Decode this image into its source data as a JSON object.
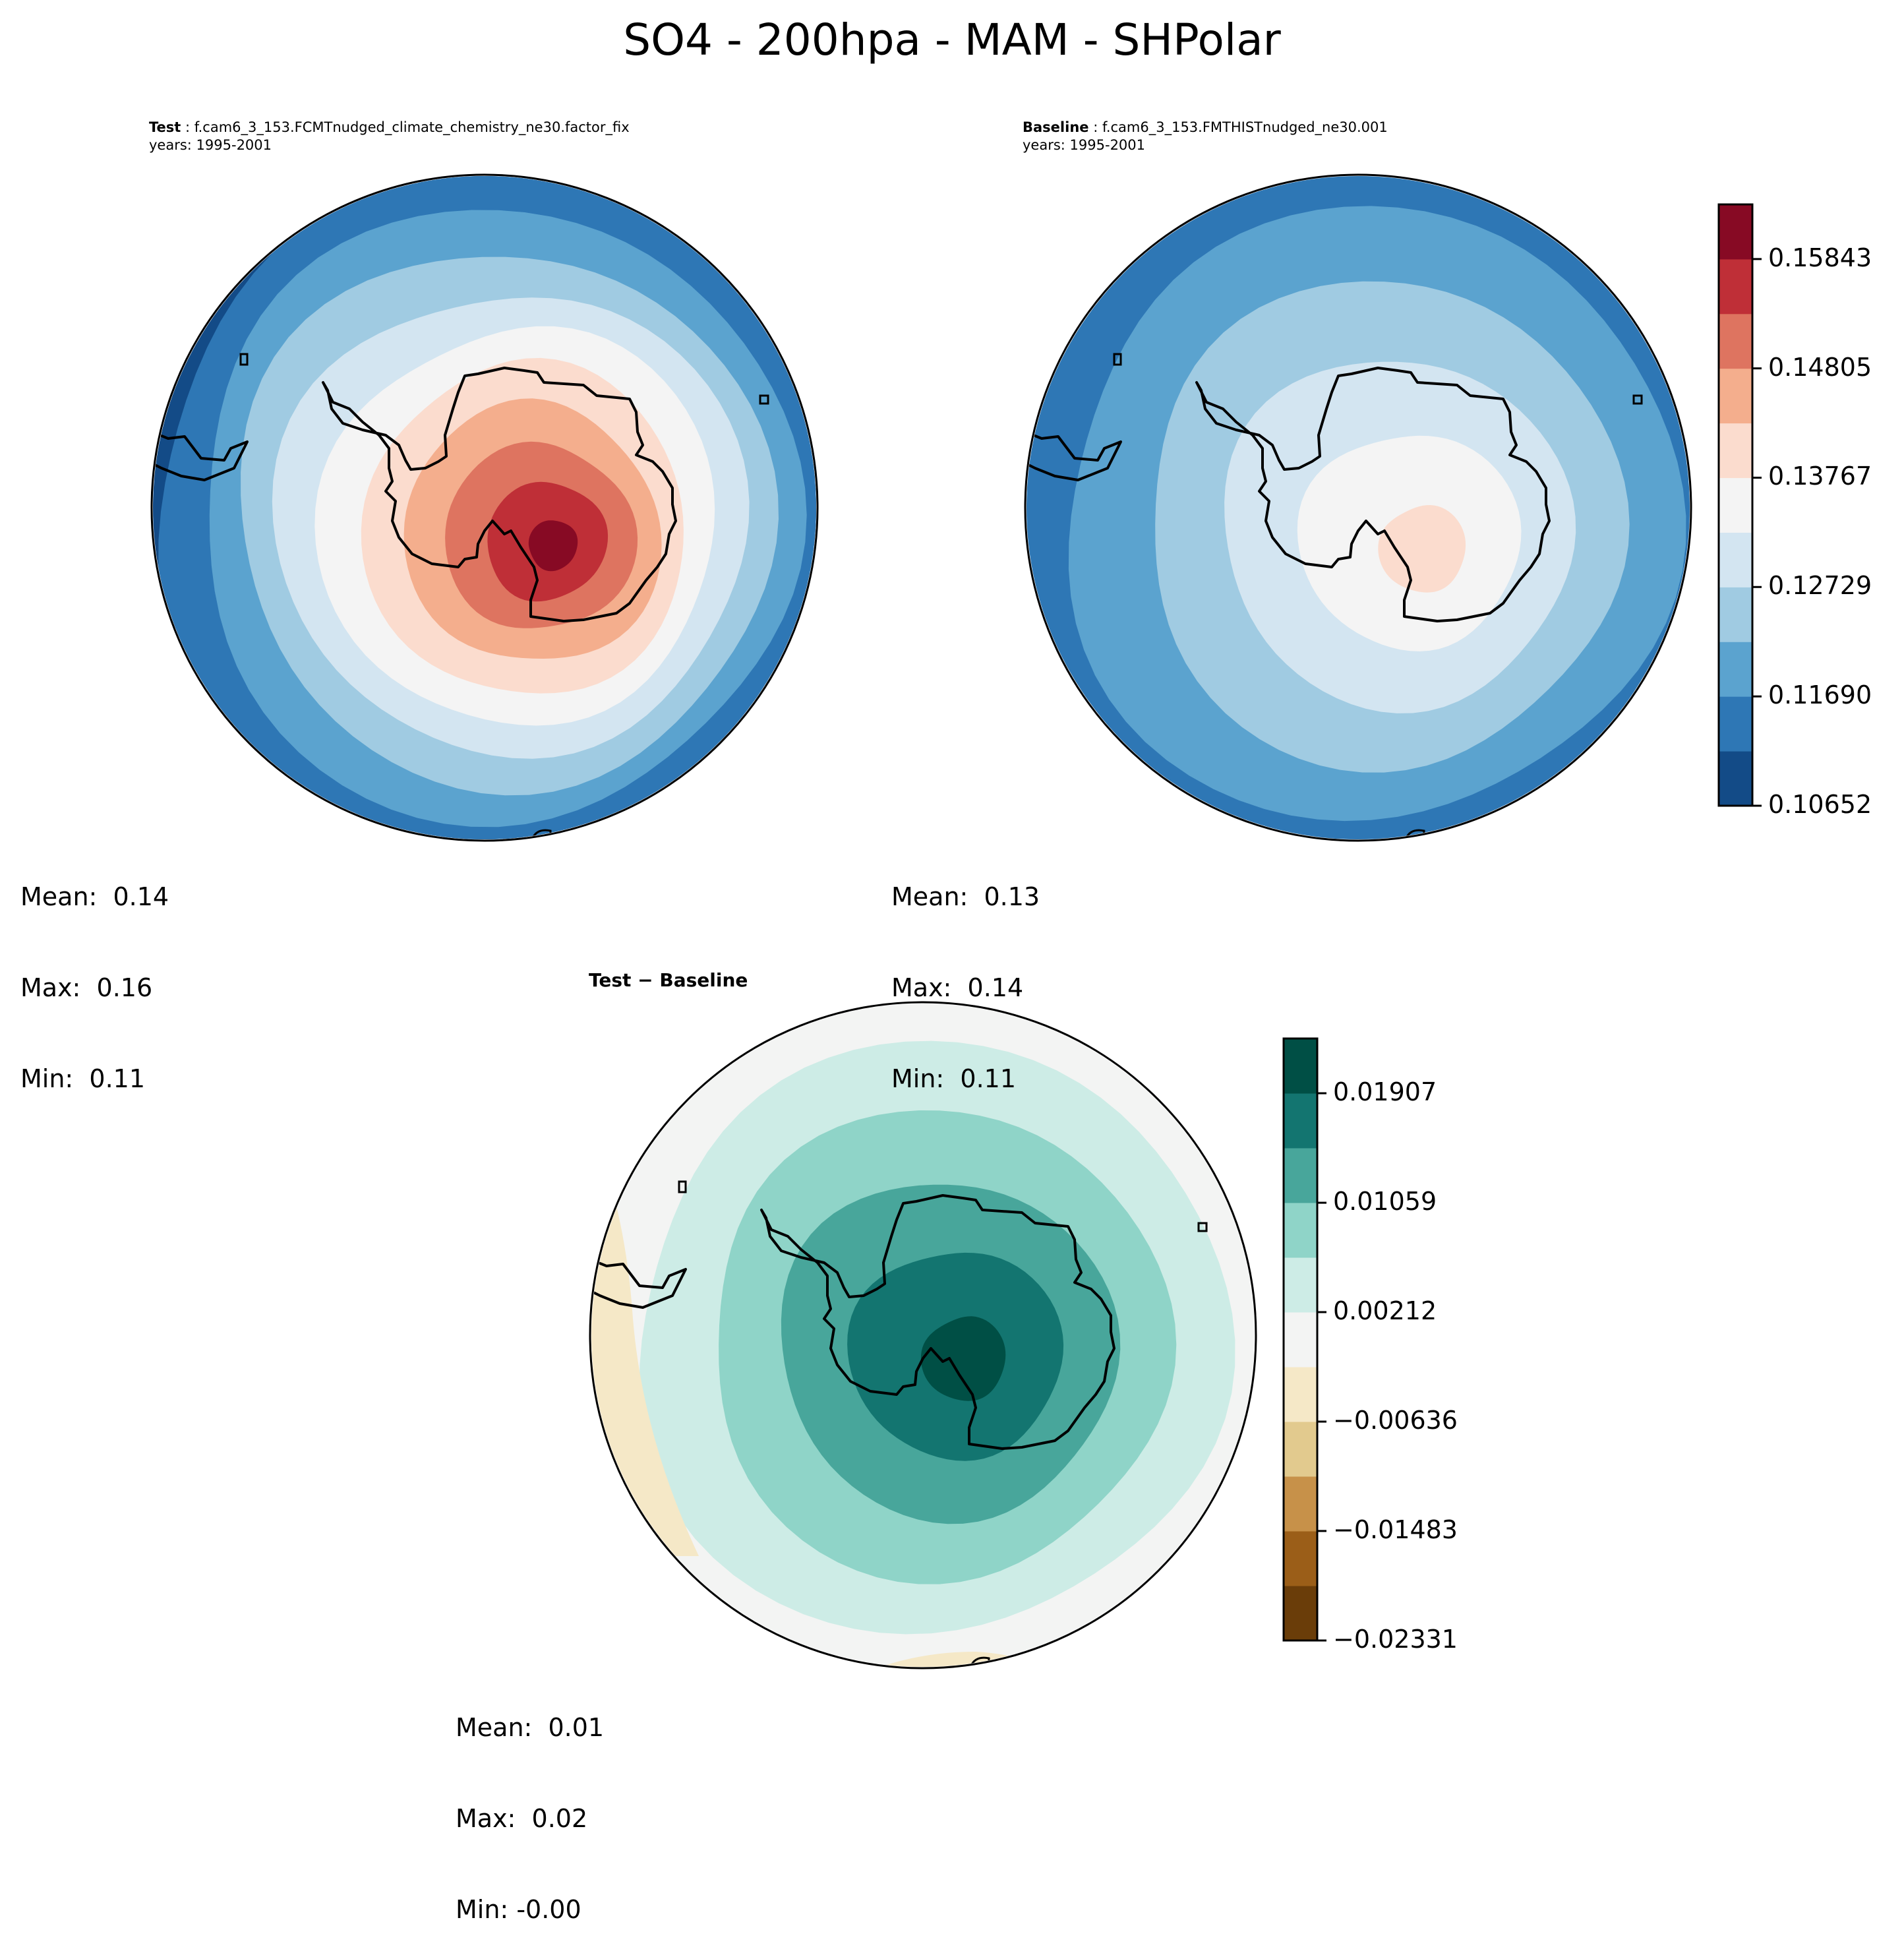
{
  "figure": {
    "title": "SO4 - 200hpa - MAM - SHPolar"
  },
  "chart_data": [
    {
      "type": "heatmap",
      "projection": "south-polar-stereographic",
      "panel": "test",
      "label_bold": "Test",
      "case_name": "f.cam6_3_153.FCMTnudged_climate_chemistry_ne30.factor_fix",
      "years": "years: 1995-2001",
      "stats": {
        "mean": "0.14",
        "max": "0.16",
        "min": "0.11"
      },
      "colormap": "RdBu_r",
      "levels": [
        0.10652,
        0.11171,
        0.1169,
        0.1221,
        0.12729,
        0.13248,
        0.13767,
        0.14286,
        0.14805,
        0.15324,
        0.15843,
        0.16362
      ],
      "field_rings_from_edge": [
        1,
        2,
        3,
        4,
        5,
        6,
        7,
        8,
        9,
        10
      ],
      "description": "Concentric contour bands: lowest (dark blue) at the outer edge rising to highest (dark red) over East Antarctica"
    },
    {
      "type": "heatmap",
      "projection": "south-polar-stereographic",
      "panel": "baseline",
      "label_bold": "Baseline",
      "case_name": "f.cam6_3_153.FMTHISTnudged_ne30.001",
      "years": "years: 1995-2001",
      "stats": {
        "mean": "0.13",
        "max": "0.14",
        "min": "0.11"
      },
      "colormap": "RdBu_r",
      "field_rings_from_edge": [
        0,
        1,
        2,
        3,
        4,
        5,
        6
      ],
      "description": "Concentric bands from blue edge to light salmon over East Antarctica"
    },
    {
      "type": "heatmap",
      "projection": "south-polar-stereographic",
      "panel": "difference",
      "title_left": "Test",
      "title_op": " − ",
      "title_right": "Baseline",
      "stats": {
        "mean": "0.01",
        "max": "0.02",
        "min": "-0.00"
      },
      "colormap": "BrBG",
      "levels": [
        -0.02331,
        -0.01907,
        -0.01483,
        -0.0106,
        -0.00636,
        -0.00212,
        0.00212,
        0.00636,
        0.01059,
        0.01483,
        0.01907,
        0.02331
      ],
      "field_rings_from_edge": [
        5,
        6,
        7,
        8,
        9,
        10
      ],
      "description": "Near-zero at the edge rising to dark teal over Antarctica; small tan patches on the left and bottom edges"
    }
  ],
  "colorbars": [
    {
      "name": "test-baseline-colorbar",
      "ticks": [
        "0.15843",
        "0.14805",
        "0.13767",
        "0.12729",
        "0.11690",
        "0.10652"
      ],
      "tick_values": [
        0.15843,
        0.14805,
        0.13767,
        0.12729,
        0.1169,
        0.10652
      ],
      "range": [
        0.10652,
        0.16362
      ],
      "colors": [
        "#134b87",
        "#2e77b5",
        "#5ba3cf",
        "#a0cbe2",
        "#d3e5f1",
        "#f4f4f4",
        "#fbdcce",
        "#f4ae8d",
        "#de7460",
        "#bf2f37",
        "#870a24"
      ]
    },
    {
      "name": "diff-colorbar",
      "ticks": [
        "0.01907",
        "0.01059",
        "0.00212",
        "−0.00636",
        "−0.01483",
        "−0.02331"
      ],
      "tick_values": [
        0.01907,
        0.01059,
        0.00212,
        -0.00636,
        -0.01483,
        -0.02331
      ],
      "range": [
        -0.02331,
        0.02331
      ],
      "colors": [
        "#6a3d09",
        "#9b5e18",
        "#c79149",
        "#e2ca8e",
        "#f5e8c7",
        "#f3f4f3",
        "#cdece6",
        "#8fd4c8",
        "#48a69b",
        "#137570",
        "#004f45"
      ]
    }
  ]
}
